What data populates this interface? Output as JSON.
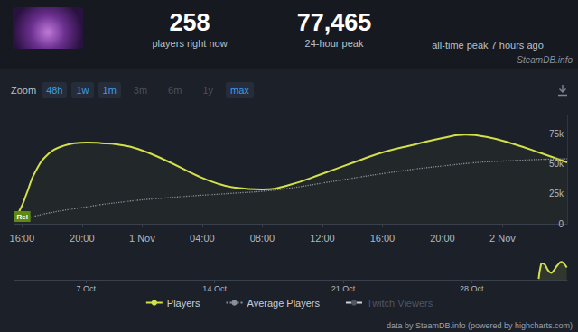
{
  "header": {
    "current": "258",
    "current_label": "players right now",
    "peak_24h": "77,465",
    "peak_24h_label": "24-hour peak",
    "all_time": "all-time peak 7 hours ago",
    "site": "SteamDB.info"
  },
  "zoom": {
    "label": "Zoom",
    "buttons": [
      "48h",
      "1w",
      "1m",
      "3m",
      "6m",
      "1y",
      "max"
    ],
    "disabled": [
      "3m",
      "6m",
      "1y"
    ]
  },
  "footer": "data by SteamDB.info (powered by highcharts.com)",
  "chart_data": [
    {
      "type": "line",
      "x": [
        15.5,
        16.0,
        16.3,
        16.9,
        17.8,
        18.7,
        19.5,
        20.3,
        21.3,
        22.3,
        23.7,
        25.6,
        27.7,
        29.0,
        30.2,
        32.0,
        33.8,
        36.1,
        38.6,
        40.2,
        42.2,
        44.0,
        45.5,
        47.0,
        48.8,
        50.6,
        52.3
      ],
      "series": [
        {
          "name": "Players",
          "color": "#d2e04a",
          "line_style": "solid",
          "marker": "none",
          "values": [
            3000,
            15000,
            24750,
            43500,
            58500,
            64500,
            67000,
            67500,
            67000,
            66000,
            62250,
            52500,
            39750,
            33500,
            30000,
            28500,
            32250,
            42000,
            53250,
            60000,
            66000,
            71250,
            74000,
            72000,
            66000,
            58500,
            51000
          ]
        },
        {
          "name": "Average Players",
          "color": "#8a9099",
          "line_style": "dotted",
          "marker": "none",
          "values": [
            2000,
            3500,
            4500,
            6500,
            9000,
            11000,
            12500,
            14000,
            16000,
            17500,
            19500,
            21500,
            23500,
            24500,
            25500,
            27000,
            29500,
            34000,
            39000,
            42000,
            45500,
            48000,
            50000,
            51500,
            52500,
            53500,
            54000
          ]
        },
        {
          "name": "Twitch Viewers",
          "color": "#6a707a",
          "line_style": "solid",
          "marker": "none",
          "values": [
            null,
            null,
            null,
            null,
            null,
            null,
            null,
            null,
            null,
            null,
            null,
            null,
            null,
            null,
            null,
            null,
            null,
            null,
            null,
            null,
            null,
            null,
            null,
            null,
            null,
            null,
            null
          ]
        }
      ],
      "xlim": [
        15.5,
        52.3
      ],
      "xticks": [
        {
          "value": 16,
          "label": "16:00"
        },
        {
          "value": 20,
          "label": "20:00"
        },
        {
          "value": 24,
          "label": "1 Nov"
        },
        {
          "value": 28,
          "label": "04:00"
        },
        {
          "value": 32,
          "label": "08:00"
        },
        {
          "value": 36,
          "label": "12:00"
        },
        {
          "value": 40,
          "label": "16:00"
        },
        {
          "value": 44,
          "label": "20:00"
        },
        {
          "value": 48,
          "label": "2 Nov"
        }
      ],
      "ylim": [
        0,
        90000
      ],
      "yticks": [
        0,
        {
          "value": 25000,
          "label": "25k"
        },
        {
          "value": 50000,
          "label": "50k"
        },
        {
          "value": 75000,
          "label": "75k"
        }
      ],
      "grid": false,
      "legend": "bottom",
      "annotations": [
        {
          "text": "Rel",
          "x": 15.6
        }
      ]
    },
    {
      "type": "line",
      "x": [
        31.646,
        31.779,
        31.846,
        31.988,
        32.154,
        32.333,
        32.504,
        32.675,
        32.896,
        33.033,
        33.179
      ],
      "series": [
        {
          "name": "Players",
          "color": "#d2e04a",
          "line_style": "solid",
          "marker": "none",
          "values": [
            3000,
            64500,
            67500,
            62250,
            39750,
            28500,
            42000,
            60000,
            74000,
            66000,
            51000
          ]
        }
      ],
      "xlim": [
        3.1,
        33.2
      ],
      "xticks": [
        {
          "value": 7,
          "label": "7 Oct"
        },
        {
          "value": 14,
          "label": "14 Oct"
        },
        {
          "value": 21,
          "label": "21 Oct"
        },
        {
          "value": 28,
          "label": "28 Oct"
        }
      ],
      "ylim": [
        0,
        90000
      ],
      "yticks": [],
      "grid": false,
      "tick_labels": "x"
    }
  ]
}
